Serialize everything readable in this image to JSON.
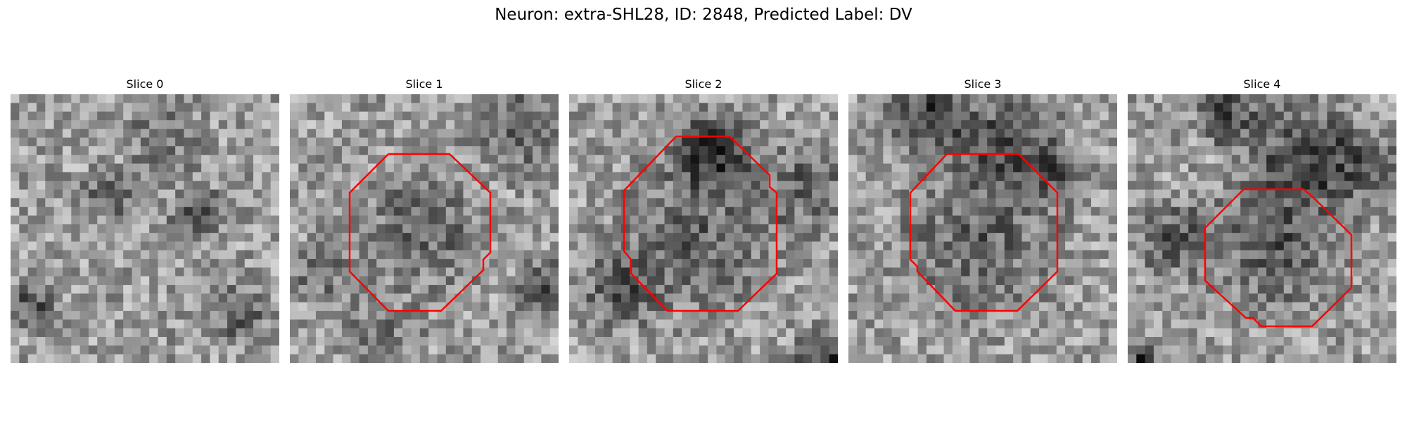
{
  "figure": {
    "title": "Neuron: extra-SHL28, ID: 2848, Predicted Label: DV",
    "overlay_color": "#ff0000"
  },
  "slices": [
    {
      "title": "Slice 0",
      "has_contour": false
    },
    {
      "title": "Slice 1",
      "has_contour": true
    },
    {
      "title": "Slice 2",
      "has_contour": true
    },
    {
      "title": "Slice 3",
      "has_contour": true
    },
    {
      "title": "Slice 4",
      "has_contour": true
    }
  ]
}
